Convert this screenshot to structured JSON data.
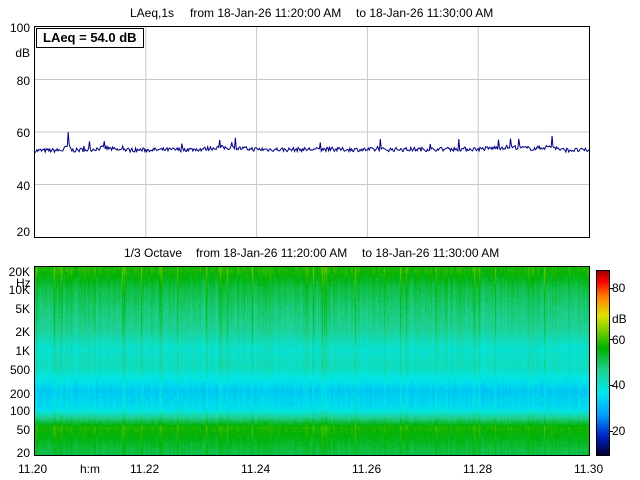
{
  "level_chart": {
    "title_metric": "LAeq,1s",
    "title_from": "from 18-Jan-26 11:20:00 AM",
    "title_to": "to 18-Jan-26 11:30:00 AM",
    "readout": "LAeq = 54.0 dB",
    "y_unit": "dB",
    "y_ticks": [
      "100",
      "80",
      "60",
      "40",
      "20"
    ]
  },
  "spectrogram": {
    "title_metric": "1/3 Octave",
    "title_from": "from 18-Jan-26 11:20:00 AM",
    "title_to": "to 18-Jan-26 11:30:00 AM",
    "y_unit": "Hz",
    "y_ticks": [
      "20K",
      "10K",
      "5K",
      "2K",
      "1K",
      "500",
      "200",
      "100",
      "50",
      "20"
    ],
    "colorbar_unit": "dB",
    "colorbar_ticks": [
      "80",
      "60",
      "40",
      "20"
    ]
  },
  "x_axis": {
    "unit": "h:m",
    "ticks": [
      "11.20",
      "11.22",
      "11.24",
      "11.26",
      "11.28",
      "11.30"
    ]
  },
  "chart_data": [
    {
      "type": "line",
      "title": "LAeq,1s from 18-Jan-26 11:20:00 AM to 18-Jan-26 11:30:00 AM",
      "xlabel": "h:m",
      "ylabel": "dB",
      "xlim": [
        "11:20",
        "11:30"
      ],
      "ylim": [
        20,
        100
      ],
      "grid": true,
      "series_color": "#000080",
      "annotation": "LAeq = 54.0 dB",
      "y_keypoints": [
        [
          "11:20:00",
          52.0
        ],
        [
          "11:20:30",
          52.5
        ],
        [
          "11:20:36",
          60.0
        ],
        [
          "11:20:40",
          52.5
        ],
        [
          "11:21:00",
          53.5
        ],
        [
          "11:21:15",
          56.5
        ],
        [
          "11:21:30",
          53.0
        ],
        [
          "11:22:00",
          53.0
        ],
        [
          "11:23:00",
          54.0
        ],
        [
          "11:23:20",
          57.0
        ],
        [
          "11:24:00",
          54.0
        ],
        [
          "11:24:30",
          53.5
        ],
        [
          "11:25:00",
          54.0
        ],
        [
          "11:26:00",
          53.5
        ],
        [
          "11:27:00",
          54.0
        ],
        [
          "11:28:00",
          54.5
        ],
        [
          "11:28:35",
          57.5
        ],
        [
          "11:29:00",
          55.0
        ],
        [
          "11:29:20",
          58.5
        ],
        [
          "11:29:30",
          53.0
        ],
        [
          "11:30:00",
          52.5
        ]
      ]
    },
    {
      "type": "heatmap",
      "title": "1/3 Octave from 18-Jan-26 11:20:00 AM to 18-Jan-26 11:30:00 AM",
      "xlabel": "h:m",
      "ylabel": "Hz",
      "xlim": [
        "11:20",
        "11:30"
      ],
      "y_bands_hz": [
        20,
        50,
        100,
        200,
        500,
        1000,
        2000,
        5000,
        10000,
        20000
      ],
      "band_level_db": [
        52,
        58,
        36,
        33,
        42,
        40,
        46,
        49,
        52,
        58
      ],
      "color_scale": "dB",
      "clim": [
        10,
        90
      ]
    }
  ]
}
